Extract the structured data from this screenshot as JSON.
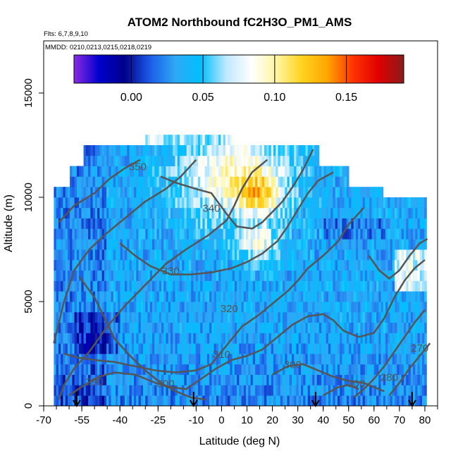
{
  "chart_data": {
    "type": "heatmap",
    "title": "ATOM2 Northbound fC2H3O_PM1_AMS",
    "flights_note": "Flts: 6,7,8,9,10",
    "dates_note": "MMDD: 0210,0213,0215,0218,0219",
    "xlabel": "Latitude (deg N)",
    "ylabel": "Altitude (m)",
    "xlim": [
      -70,
      85
    ],
    "ylim": [
      0,
      17500
    ],
    "x_ticks": [
      "-70",
      "-55",
      "-40",
      "-25",
      "-10",
      "0",
      "10",
      "20",
      "30",
      "40",
      "50",
      "60",
      "70",
      "80"
    ],
    "x_tick_values": [
      -70,
      -55,
      -40,
      -25,
      -10,
      0,
      10,
      20,
      30,
      40,
      50,
      60,
      70,
      80
    ],
    "y_ticks": [
      "0",
      "5000",
      "10000",
      "15000"
    ],
    "y_tick_values": [
      0,
      5000,
      10000,
      15000
    ],
    "colorbar": {
      "ticks": [
        "0.00",
        "0.05",
        "0.10",
        "0.15"
      ],
      "tick_values": [
        0.0,
        0.05,
        0.1,
        0.15
      ],
      "range": [
        -0.04,
        0.19
      ],
      "colors": [
        "#8a2be2",
        "#0000cd",
        "#00008b",
        "#1c5ce8",
        "#2ea8f5",
        "#00bfff",
        "#bfe8ff",
        "#ffffff",
        "#fff5a0",
        "#ffd21e",
        "#ffa500",
        "#ff3300",
        "#e00000",
        "#8b1a1a"
      ]
    },
    "contour_labels": [
      {
        "text": "350",
        "lat": -33,
        "alt": 11300
      },
      {
        "text": "340",
        "lat": -4,
        "alt": 9300
      },
      {
        "text": "330",
        "lat": -20,
        "alt": 6300
      },
      {
        "text": "320",
        "lat": 3,
        "alt": 4500
      },
      {
        "text": "310",
        "lat": 0,
        "alt": 2300
      },
      {
        "text": "300",
        "lat": 28,
        "alt": 1800
      },
      {
        "text": "300",
        "lat": -22,
        "alt": 900
      },
      {
        "text": "300",
        "lat": 53,
        "alt": 900
      },
      {
        "text": "290",
        "lat": -50,
        "alt": 1000
      },
      {
        "text": "280",
        "lat": 66,
        "alt": 1200
      },
      {
        "text": "270",
        "lat": 78,
        "alt": 2600
      }
    ],
    "arrow_latitudes": [
      -57,
      -11,
      37,
      75
    ],
    "grid": false
  }
}
